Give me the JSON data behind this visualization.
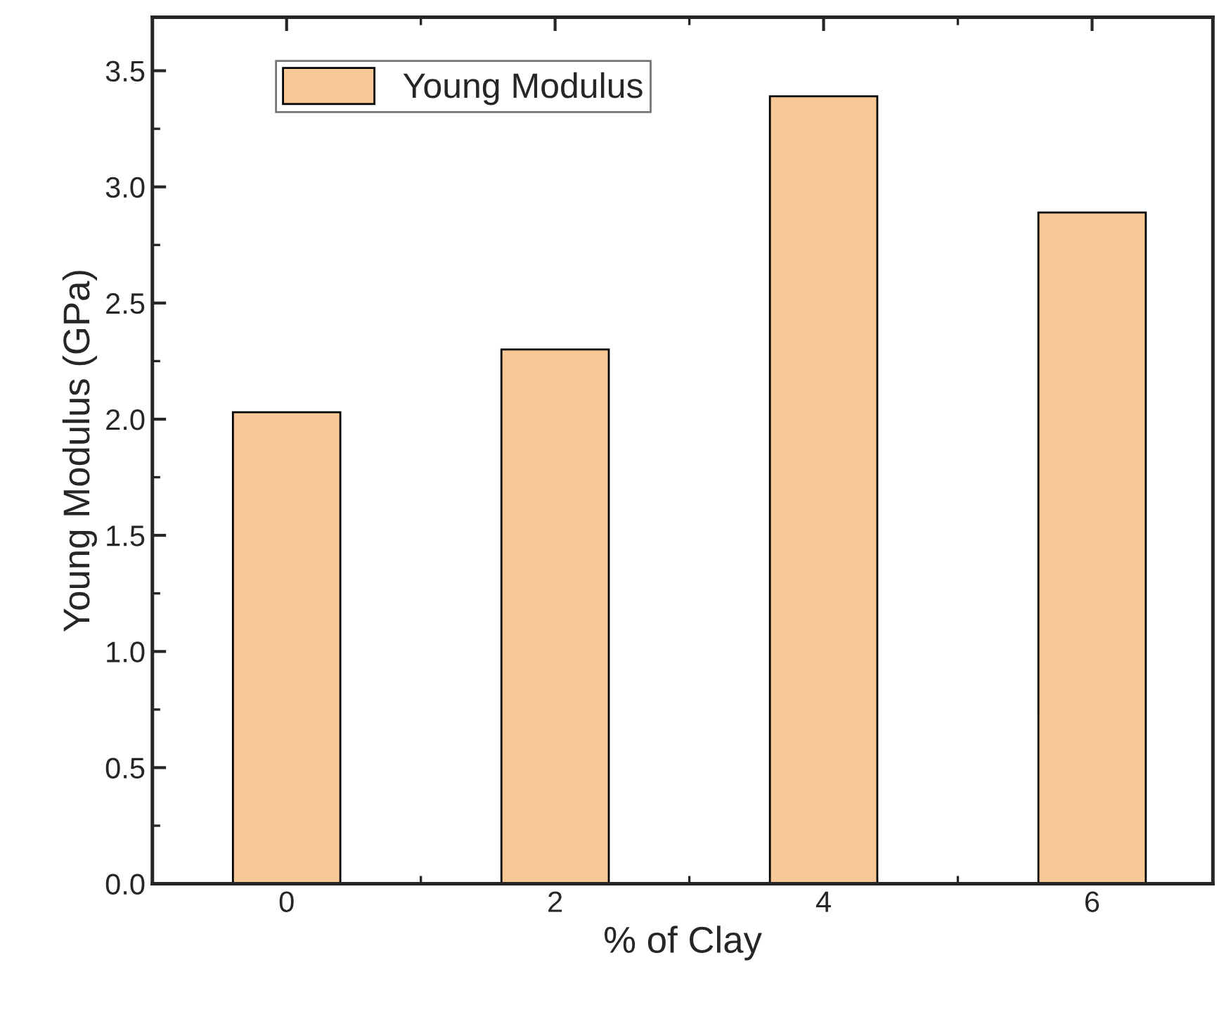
{
  "chart_data": {
    "type": "bar",
    "xlabel": "% of Clay",
    "ylabel": "Young Modulus (GPa)",
    "x": [
      0,
      2,
      4,
      6
    ],
    "series": [
      {
        "name": "Young Modulus",
        "color": "#f9c897",
        "values": [
          2.03,
          2.3,
          3.39,
          2.89
        ]
      }
    ],
    "xlim": [
      -1,
      6.9
    ],
    "xticks": [
      0,
      2,
      4,
      6
    ],
    "ylim": [
      0,
      3.73
    ],
    "yticks": [
      {
        "value": 0,
        "label": "0.0"
      },
      0.5,
      {
        "value": 1,
        "label": "1.0"
      },
      1.5,
      {
        "value": 2,
        "label": "2.0"
      },
      2.5,
      {
        "value": 3,
        "label": "3.0"
      },
      3.5
    ],
    "grid": false,
    "legend": "top left"
  }
}
